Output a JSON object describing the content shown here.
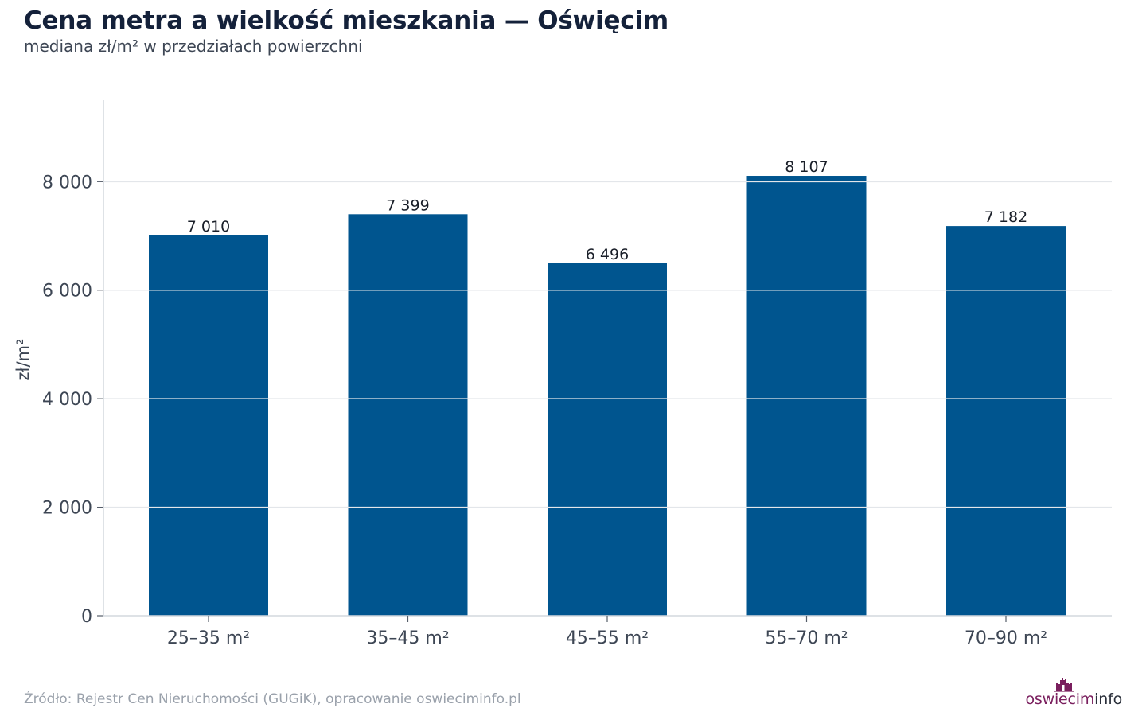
{
  "header": {
    "title": "Cena metra a wielkość mieszkania — Oświęcim",
    "subtitle": "mediana zł/m² w przedziałach powierzchni"
  },
  "footer": {
    "source": "Źródło: Rejestr Cen Nieruchomości (GUGiK), opracowanie oswieciminfo.pl",
    "logo_brand": "oswiecim",
    "logo_suffix": "info"
  },
  "colors": {
    "bar": "#00558f",
    "brand": "#7a1f5e"
  },
  "chart_data": {
    "type": "bar",
    "title": "Cena metra a wielkość mieszkania — Oświęcim",
    "subtitle": "mediana zł/m² w przedziałach powierzchni",
    "xlabel": "",
    "ylabel": "zł/m²",
    "categories": [
      "25–35 m²",
      "35–45 m²",
      "45–55 m²",
      "55–70 m²",
      "70–90 m²"
    ],
    "values": [
      7010,
      7399,
      6496,
      8107,
      7182
    ],
    "value_labels": [
      "7 010",
      "7 399",
      "6 496",
      "8 107",
      "7 182"
    ],
    "ylim": [
      0,
      9500
    ],
    "yticks": [
      0,
      2000,
      4000,
      6000,
      8000
    ],
    "ytick_labels": [
      "0",
      "2 000",
      "4 000",
      "6 000",
      "8 000"
    ],
    "grid": true,
    "legend": "none"
  }
}
